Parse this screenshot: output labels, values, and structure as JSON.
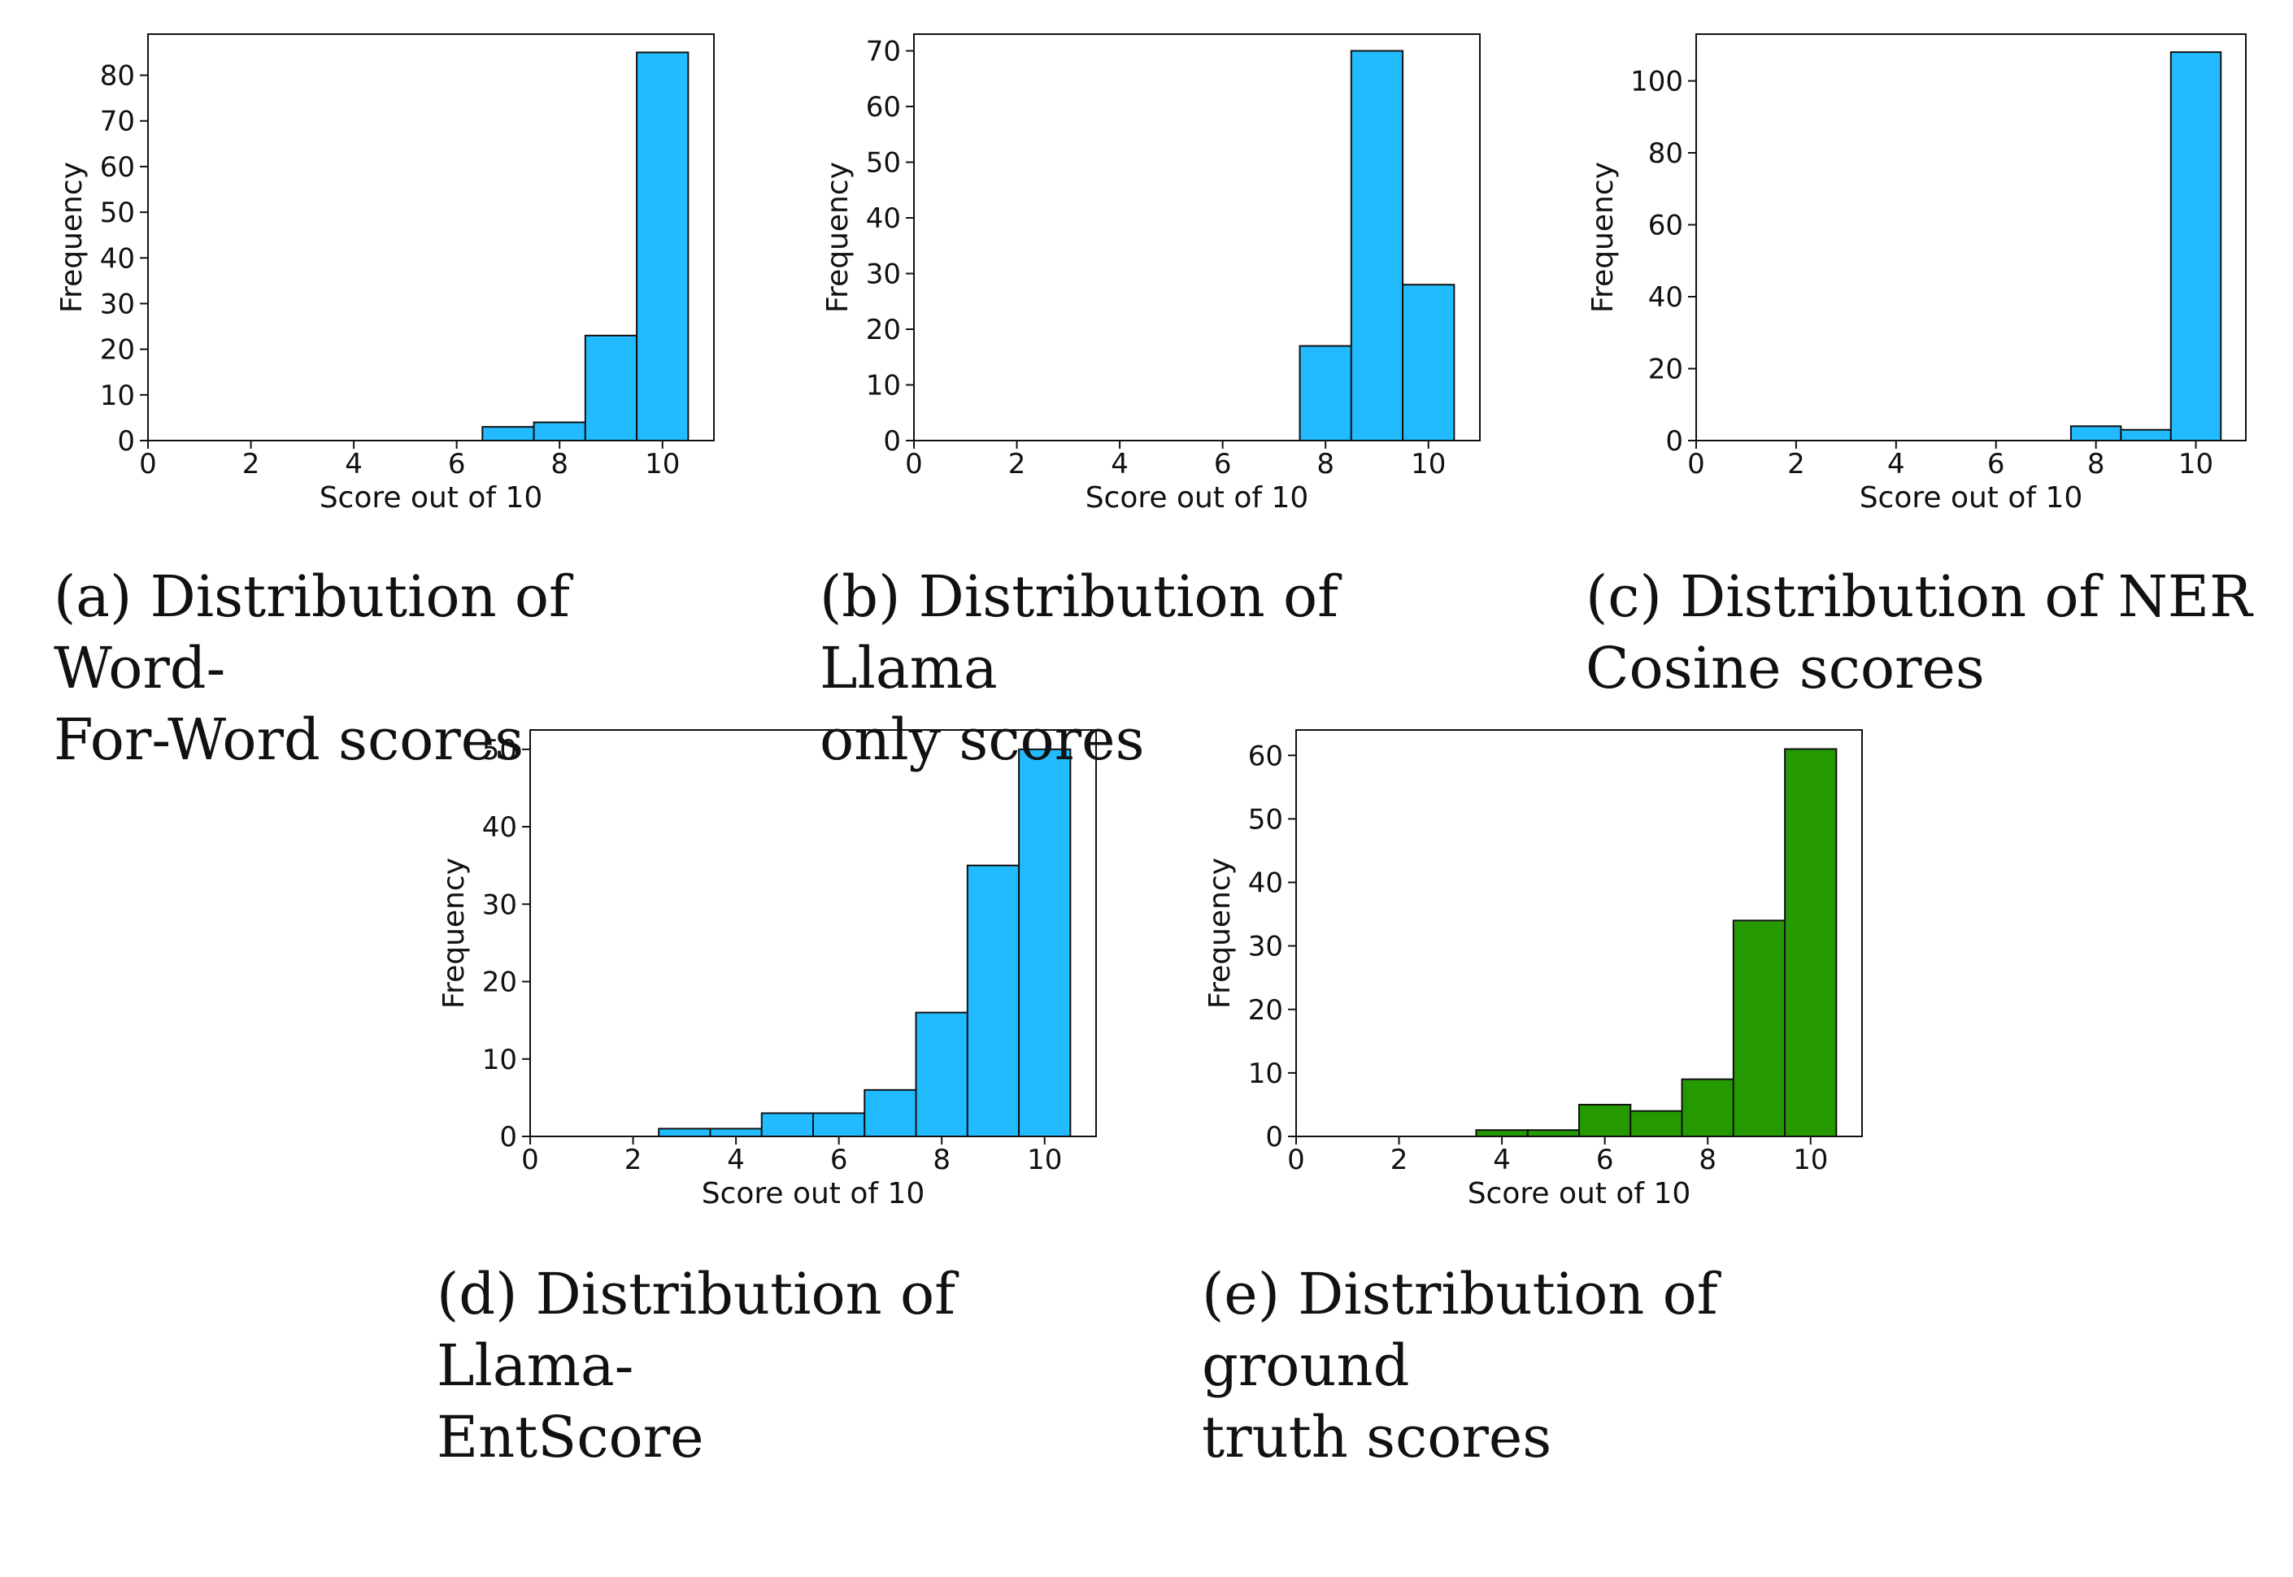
{
  "figure": {
    "colors": {
      "blue": "#22BBFF",
      "green": "#249A00",
      "edge": "#111111",
      "axis": "#111111"
    },
    "captions": [
      {
        "label": "(a)",
        "text": "Distribution of Word-For-Word scores",
        "line1": "(a) Distribution of Word-",
        "line2": "For-Word scores"
      },
      {
        "label": "(b)",
        "text": "Distribution of Llama only scores",
        "line1": "(b) Distribution of Llama",
        "line2": "only scores"
      },
      {
        "label": "(c)",
        "text": "Distribution of NER Cosine scores",
        "line1": "(c) Distribution of NER",
        "line2": "Cosine scores"
      },
      {
        "label": "(d)",
        "text": "Distribution of Llama-EntScore",
        "line1": "(d) Distribution of Llama-",
        "line2": "EntScore"
      },
      {
        "label": "(e)",
        "text": "Distribution of ground truth scores",
        "line1": "(e) Distribution of ground",
        "line2": "truth scores"
      }
    ]
  },
  "chart_data": [
    {
      "id": "a",
      "type": "bar",
      "histogram": true,
      "color": "blue",
      "title": "",
      "xlabel": "Score out of 10",
      "ylabel": "Frequency",
      "xlim": [
        0,
        11
      ],
      "ylim": [
        0,
        89
      ],
      "xticks": [
        0,
        2,
        4,
        6,
        8,
        10
      ],
      "yticks": [
        0,
        10,
        20,
        30,
        40,
        50,
        60,
        70,
        80
      ],
      "categories": [
        1,
        2,
        3,
        4,
        5,
        6,
        7,
        8,
        9,
        10
      ],
      "values": [
        0,
        0,
        0,
        0,
        0,
        0,
        3,
        4,
        23,
        85
      ]
    },
    {
      "id": "b",
      "type": "bar",
      "histogram": true,
      "color": "blue",
      "title": "",
      "xlabel": "Score out of 10",
      "ylabel": "Frequency",
      "xlim": [
        0,
        11
      ],
      "ylim": [
        0,
        73
      ],
      "xticks": [
        0,
        2,
        4,
        6,
        8,
        10
      ],
      "yticks": [
        0,
        10,
        20,
        30,
        40,
        50,
        60,
        70
      ],
      "categories": [
        1,
        2,
        3,
        4,
        5,
        6,
        7,
        8,
        9,
        10
      ],
      "values": [
        0,
        0,
        0,
        0,
        0,
        0,
        0,
        17,
        70,
        28
      ]
    },
    {
      "id": "c",
      "type": "bar",
      "histogram": true,
      "color": "blue",
      "title": "",
      "xlabel": "Score out of 10",
      "ylabel": "Frequency",
      "xlim": [
        0,
        11
      ],
      "ylim": [
        0,
        113
      ],
      "xticks": [
        0,
        2,
        4,
        6,
        8,
        10
      ],
      "yticks": [
        0,
        20,
        40,
        60,
        80,
        100
      ],
      "categories": [
        1,
        2,
        3,
        4,
        5,
        6,
        7,
        8,
        9,
        10
      ],
      "values": [
        0,
        0,
        0,
        0,
        0,
        0,
        0,
        4,
        3,
        108
      ]
    },
    {
      "id": "d",
      "type": "bar",
      "histogram": true,
      "color": "blue",
      "title": "",
      "xlabel": "Score out of 10",
      "ylabel": "Frequency",
      "xlim": [
        0,
        11
      ],
      "ylim": [
        0,
        52.5
      ],
      "xticks": [
        0,
        2,
        4,
        6,
        8,
        10
      ],
      "yticks": [
        0,
        10,
        20,
        30,
        40,
        50
      ],
      "categories": [
        1,
        2,
        3,
        4,
        5,
        6,
        7,
        8,
        9,
        10
      ],
      "values": [
        0,
        0,
        1,
        1,
        3,
        3,
        6,
        16,
        35,
        50
      ]
    },
    {
      "id": "e",
      "type": "bar",
      "histogram": true,
      "color": "green",
      "title": "",
      "xlabel": "Score out of 10",
      "ylabel": "Frequency",
      "xlim": [
        0,
        11
      ],
      "ylim": [
        0,
        64
      ],
      "xticks": [
        0,
        2,
        4,
        6,
        8,
        10
      ],
      "yticks": [
        0,
        10,
        20,
        30,
        40,
        50,
        60
      ],
      "categories": [
        1,
        2,
        3,
        4,
        5,
        6,
        7,
        8,
        9,
        10
      ],
      "values": [
        0,
        0,
        0,
        1,
        1,
        5,
        4,
        9,
        34,
        61
      ]
    }
  ]
}
